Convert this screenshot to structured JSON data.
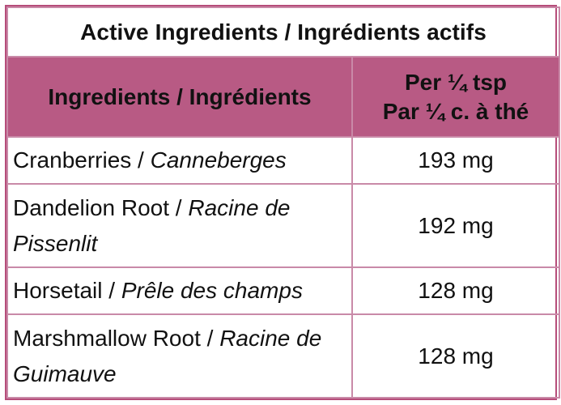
{
  "table": {
    "title": "Active Ingredients / Ingrédients actifs",
    "header": {
      "ingredient_label": "Ingredients / Ingrédients",
      "amount_line1": "Per ¼ tsp",
      "amount_line2": "Par ¼ c. à thé"
    },
    "rows": [
      {
        "name_en": "Cranberries",
        "separator": " / ",
        "name_fr": "Canneberges",
        "amount": "193 mg"
      },
      {
        "name_en": "Dandelion Root",
        "separator": " / ",
        "name_fr": "Racine de Pissenlit",
        "amount": "192 mg"
      },
      {
        "name_en": "Horsetail",
        "separator": " / ",
        "name_fr": "Prêle des champs",
        "amount": "128 mg"
      },
      {
        "name_en": "Marshmallow Root",
        "separator": " / ",
        "name_fr": "Racine de Guimauve",
        "amount": "128 mg"
      }
    ]
  },
  "colors": {
    "header_background": "#b85a84",
    "border": "#c98aa8"
  }
}
